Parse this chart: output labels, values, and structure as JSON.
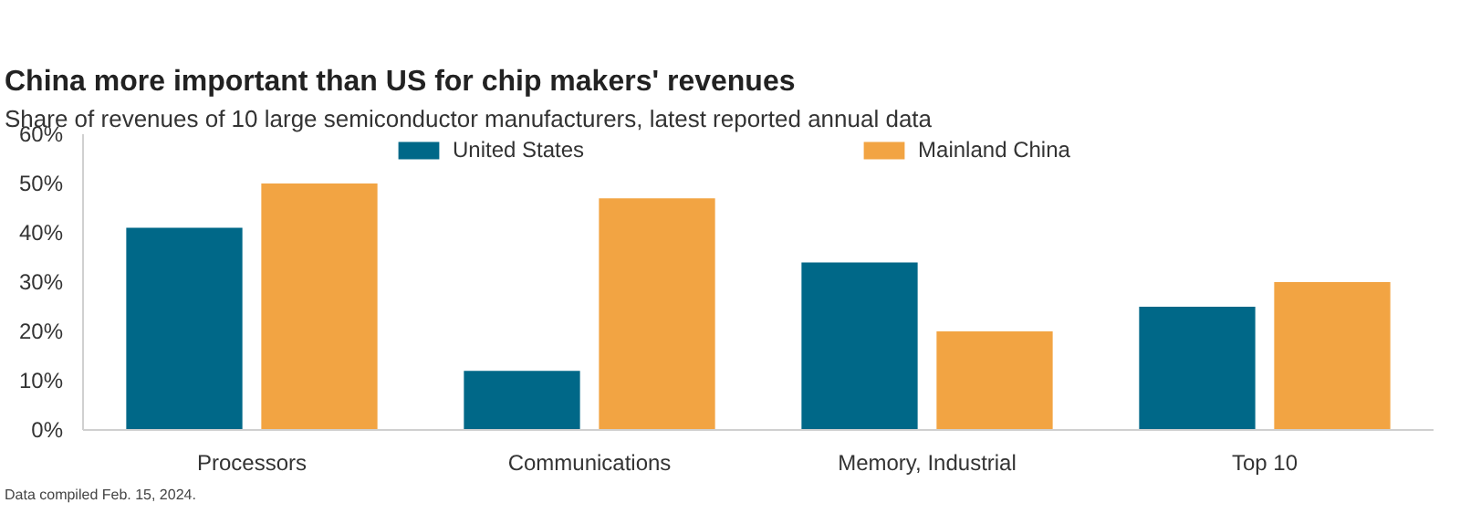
{
  "chart_data": {
    "type": "bar",
    "title": "China more important than US for chip makers' revenues",
    "subtitle": "Share of revenues of 10 large semiconductor manufacturers, latest reported annual data",
    "categories": [
      "Processors",
      "Communications",
      "Memory, Industrial",
      "Top 10"
    ],
    "series": [
      {
        "name": "United States",
        "color": "#006888",
        "values": [
          41,
          12,
          34,
          25
        ]
      },
      {
        "name": "Mainland China",
        "color": "#f2a443",
        "values": [
          50,
          47,
          20,
          30
        ]
      }
    ],
    "ylim": [
      0,
      60
    ],
    "yticks": [
      {
        "value": 0,
        "label": "0%"
      },
      {
        "value": 10,
        "label": "10%"
      },
      {
        "value": 20,
        "label": "20%"
      },
      {
        "value": 30,
        "label": "30%"
      },
      {
        "value": 40,
        "label": "40%"
      },
      {
        "value": 50,
        "label": "50%"
      },
      {
        "value": 60,
        "label": "60%"
      }
    ],
    "grid": false,
    "legend": "top",
    "annotations": [
      "Data compiled Feb. 15, 2024."
    ]
  }
}
